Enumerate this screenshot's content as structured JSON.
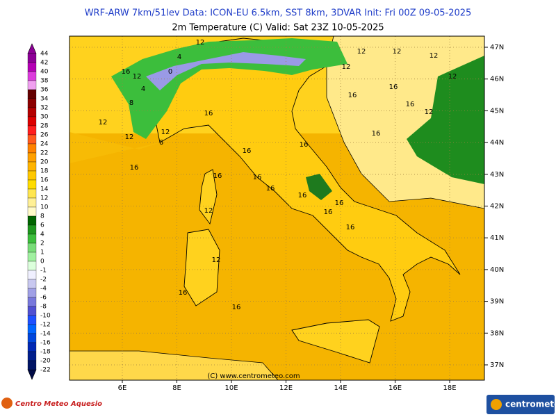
{
  "header": {
    "line1": "WRF-ARW 7km/51lev  Data: ICON-EU 6.5km, SST 8km, 3DVAR  Init: Fri 00Z 09-05-2025",
    "line2": "2m Temperature (C)  Valid: Sat 23Z 10-05-2025"
  },
  "colorbar": {
    "levels": [
      {
        "label": "44",
        "color": "#8c0096"
      },
      {
        "label": "42",
        "color": "#b400b4"
      },
      {
        "label": "40",
        "color": "#dc3cdc"
      },
      {
        "label": "38",
        "color": "#f0a0f0"
      },
      {
        "label": "36",
        "color": "#640000"
      },
      {
        "label": "34",
        "color": "#8c0000"
      },
      {
        "label": "32",
        "color": "#b40000"
      },
      {
        "label": "30",
        "color": "#dc0000"
      },
      {
        "label": "28",
        "color": "#ff1e1e"
      },
      {
        "label": "26",
        "color": "#ff5a1e"
      },
      {
        "label": "24",
        "color": "#ff8200"
      },
      {
        "label": "22",
        "color": "#ffa000"
      },
      {
        "label": "20",
        "color": "#ffb400"
      },
      {
        "label": "18",
        "color": "#ffc800"
      },
      {
        "label": "16",
        "color": "#ffdc00"
      },
      {
        "label": "14",
        "color": "#ffe650"
      },
      {
        "label": "12",
        "color": "#fff096"
      },
      {
        "label": "10",
        "color": "#fffac8"
      },
      {
        "label": "8",
        "color": "#006400"
      },
      {
        "label": "6",
        "color": "#1e961e"
      },
      {
        "label": "4",
        "color": "#3cbe3c"
      },
      {
        "label": "2",
        "color": "#78dc78"
      },
      {
        "label": "1",
        "color": "#a0f0a0"
      },
      {
        "label": "0",
        "color": "#dcffdc"
      },
      {
        "label": "-1",
        "color": "#f0f0ff"
      },
      {
        "label": "-2",
        "color": "#c8c8f0"
      },
      {
        "label": "-4",
        "color": "#a0a0e6"
      },
      {
        "label": "-6",
        "color": "#7878dc"
      },
      {
        "label": "-8",
        "color": "#5050d2"
      },
      {
        "label": "-10",
        "color": "#1e50ff"
      },
      {
        "label": "-12",
        "color": "#0064ff"
      },
      {
        "label": "-14",
        "color": "#0046dc"
      },
      {
        "label": "-16",
        "color": "#0028b4"
      },
      {
        "label": "-18",
        "color": "#001e8c"
      },
      {
        "label": "-20",
        "color": "#001464"
      },
      {
        "label": "-22",
        "color": "#000a46"
      }
    ]
  },
  "map": {
    "lat_labels": [
      "47N",
      "46N",
      "45N",
      "44N",
      "43N",
      "42N",
      "41N",
      "40N",
      "39N",
      "38N",
      "37N"
    ],
    "lon_labels": [
      "6E",
      "8E",
      "10E",
      "12E",
      "14E",
      "16E",
      "18E"
    ],
    "contour_labels": [
      "12",
      "4",
      "0",
      "16",
      "12",
      "4",
      "8",
      "12",
      "6",
      "12",
      "12",
      "12",
      "12",
      "12",
      "12",
      "16",
      "12",
      "16",
      "16",
      "16",
      "16",
      "16",
      "12",
      "16",
      "16",
      "16",
      "16",
      "16",
      "12",
      "16",
      "16",
      "16",
      "16",
      "12",
      "16",
      "16"
    ],
    "copyright": "(C) www.centrometeo.com"
  },
  "footer": {
    "left_logo": "Centro Meteo Aquesio",
    "right_logo": "centrometeo"
  }
}
